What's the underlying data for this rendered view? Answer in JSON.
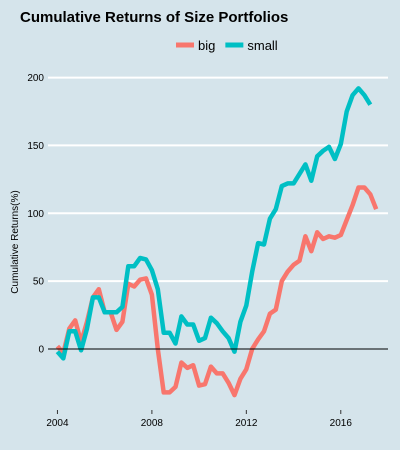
{
  "chart_data": {
    "type": "line",
    "title": "Cumulative Returns of Size Portfolios",
    "xlabel": "",
    "ylabel": "Cumulative Returns(%)",
    "xlim": [
      2003.6,
      2018.0
    ],
    "ylim": [
      -45,
      210
    ],
    "x_ticks": [
      2004,
      2008,
      2012,
      2016
    ],
    "x_tick_labels": [
      "2004",
      "2008",
      "2012",
      "2016"
    ],
    "y_ticks": [
      0,
      50,
      100,
      150,
      200
    ],
    "y_tick_labels": [
      "0",
      "50",
      "100",
      "150",
      "200"
    ],
    "grid": "horizontal",
    "legend_position": "top",
    "background_color": "#d5e4eb",
    "grid_color": "#ffffff",
    "zero_line_color": "#000000",
    "series": [
      {
        "name": "big",
        "color": "#f8766d",
        "points": [
          [
            2004.0,
            2
          ],
          [
            2004.25,
            -3
          ],
          [
            2004.5,
            15
          ],
          [
            2004.75,
            21
          ],
          [
            2005.0,
            5
          ],
          [
            2005.25,
            20
          ],
          [
            2005.5,
            38
          ],
          [
            2005.75,
            44
          ],
          [
            2006.0,
            27
          ],
          [
            2006.25,
            27
          ],
          [
            2006.5,
            14
          ],
          [
            2006.75,
            20
          ],
          [
            2007.0,
            48
          ],
          [
            2007.25,
            46
          ],
          [
            2007.5,
            51
          ],
          [
            2007.75,
            52
          ],
          [
            2008.0,
            40
          ],
          [
            2008.25,
            0
          ],
          [
            2008.5,
            -32
          ],
          [
            2008.75,
            -32
          ],
          [
            2009.0,
            -28
          ],
          [
            2009.25,
            -10
          ],
          [
            2009.5,
            -14
          ],
          [
            2009.75,
            -12
          ],
          [
            2010.0,
            -27
          ],
          [
            2010.25,
            -26
          ],
          [
            2010.5,
            -13
          ],
          [
            2010.75,
            -18
          ],
          [
            2011.0,
            -18
          ],
          [
            2011.25,
            -25
          ],
          [
            2011.5,
            -34
          ],
          [
            2011.75,
            -22
          ],
          [
            2012.0,
            -15
          ],
          [
            2012.25,
            0
          ],
          [
            2012.5,
            7
          ],
          [
            2012.75,
            13
          ],
          [
            2013.0,
            26
          ],
          [
            2013.25,
            29
          ],
          [
            2013.5,
            50
          ],
          [
            2013.75,
            57
          ],
          [
            2014.0,
            62
          ],
          [
            2014.25,
            65
          ],
          [
            2014.5,
            83
          ],
          [
            2014.75,
            72
          ],
          [
            2015.0,
            86
          ],
          [
            2015.25,
            81
          ],
          [
            2015.5,
            83
          ],
          [
            2015.75,
            82
          ],
          [
            2016.0,
            84
          ],
          [
            2016.25,
            95
          ],
          [
            2016.5,
            106
          ],
          [
            2016.75,
            119
          ],
          [
            2017.0,
            119
          ],
          [
            2017.25,
            114
          ],
          [
            2017.5,
            103
          ]
        ]
      },
      {
        "name": "small",
        "color": "#00bfc4",
        "points": [
          [
            2004.0,
            -2
          ],
          [
            2004.25,
            -7
          ],
          [
            2004.5,
            13
          ],
          [
            2004.75,
            13
          ],
          [
            2005.0,
            -1
          ],
          [
            2005.25,
            15
          ],
          [
            2005.5,
            38
          ],
          [
            2005.75,
            38
          ],
          [
            2006.0,
            27
          ],
          [
            2006.25,
            27
          ],
          [
            2006.5,
            27
          ],
          [
            2006.75,
            31
          ],
          [
            2007.0,
            61
          ],
          [
            2007.25,
            61
          ],
          [
            2007.5,
            67
          ],
          [
            2007.75,
            66
          ],
          [
            2008.0,
            58
          ],
          [
            2008.25,
            44
          ],
          [
            2008.5,
            12
          ],
          [
            2008.75,
            12
          ],
          [
            2009.0,
            4
          ],
          [
            2009.25,
            24
          ],
          [
            2009.5,
            18
          ],
          [
            2009.75,
            18
          ],
          [
            2010.0,
            6
          ],
          [
            2010.25,
            8
          ],
          [
            2010.5,
            23
          ],
          [
            2010.75,
            19
          ],
          [
            2011.0,
            13
          ],
          [
            2011.25,
            8
          ],
          [
            2011.5,
            -2
          ],
          [
            2011.75,
            20
          ],
          [
            2012.0,
            32
          ],
          [
            2012.25,
            57
          ],
          [
            2012.5,
            78
          ],
          [
            2012.75,
            77
          ],
          [
            2013.0,
            96
          ],
          [
            2013.25,
            103
          ],
          [
            2013.5,
            120
          ],
          [
            2013.75,
            122
          ],
          [
            2014.0,
            122
          ],
          [
            2014.25,
            129
          ],
          [
            2014.5,
            136
          ],
          [
            2014.75,
            124
          ],
          [
            2015.0,
            142
          ],
          [
            2015.25,
            146
          ],
          [
            2015.5,
            149
          ],
          [
            2015.75,
            140
          ],
          [
            2016.0,
            151
          ],
          [
            2016.25,
            175
          ],
          [
            2016.5,
            187
          ],
          [
            2016.75,
            192
          ],
          [
            2017.0,
            187
          ],
          [
            2017.25,
            180
          ]
        ]
      }
    ]
  }
}
